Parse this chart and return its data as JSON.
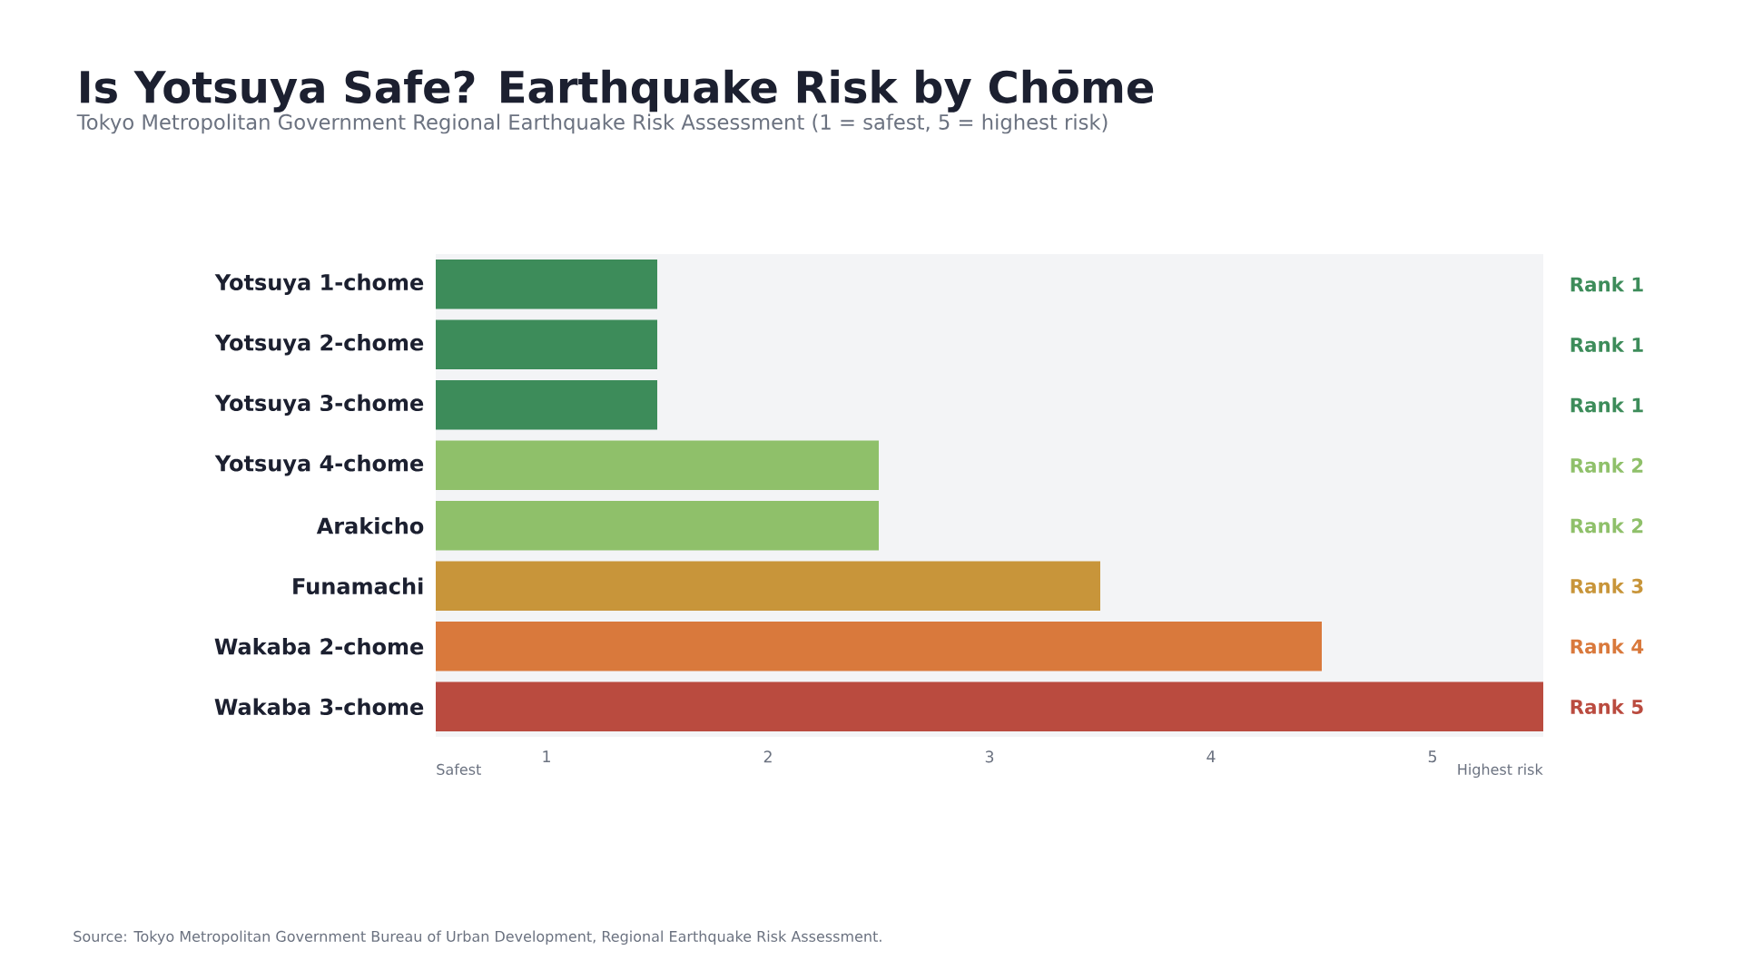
{
  "chart_data": {
    "type": "bar",
    "orientation": "horizontal",
    "title": "Is Yotsuya Safe? Earthquake Risk by Chōme",
    "subtitle": "Tokyo Metropolitan Government Regional Earthquake Risk Assessment (1 = safest, 5 = highest risk)",
    "categories": [
      "Yotsuya 1-chome",
      "Yotsuya 2-chome",
      "Yotsuya 3-chome",
      "Yotsuya 4-chome",
      "Arakicho",
      "Funamachi",
      "Wakaba 2-chome",
      "Wakaba 3-chome"
    ],
    "values": [
      1,
      1,
      1,
      2,
      2,
      3,
      4,
      5
    ],
    "base": [
      0.5,
      0.5,
      0.5,
      0.5,
      0.5,
      0.5,
      0.5,
      0.5
    ],
    "colors": [
      "#3d8c5a",
      "#3d8c5a",
      "#3d8c5a",
      "#8fc06a",
      "#8fc06a",
      "#c8953a",
      "#d9793c",
      "#ba4b3f"
    ],
    "value_labels": [
      "Rank 1",
      "Rank 1",
      "Rank 1",
      "Rank 2",
      "Rank 2",
      "Rank 3",
      "Rank 4",
      "Rank 5"
    ],
    "xlim": [
      0.5,
      5.5
    ],
    "xticks": [
      1,
      2,
      3,
      4,
      5
    ],
    "annotations": [
      "Safest",
      "Highest risk",
      "Source: Tokyo Metropolitan Government Bureau of Urban Development, Regional Earthquake Risk Assessment."
    ]
  }
}
